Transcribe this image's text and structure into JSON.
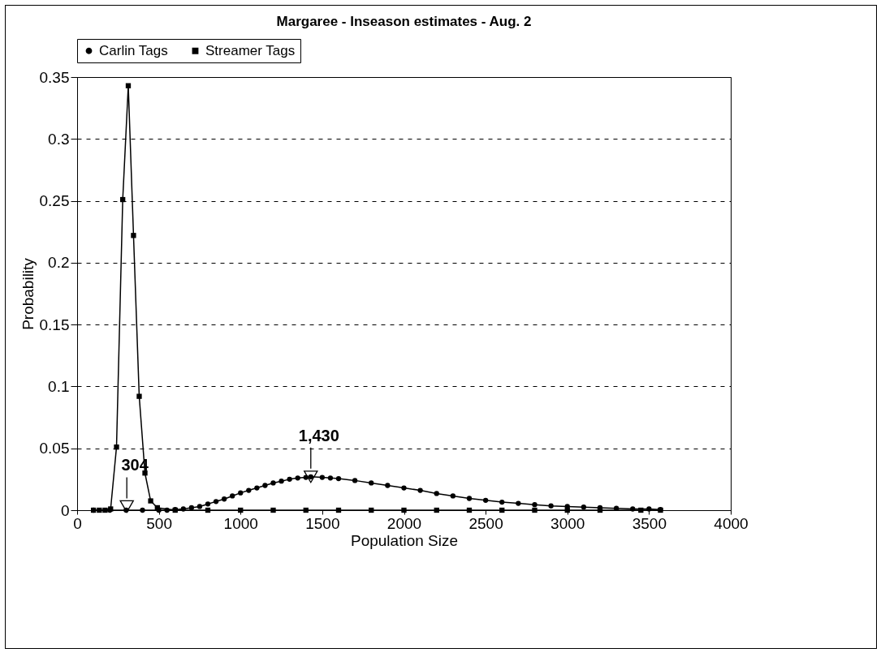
{
  "chart_data": {
    "type": "line",
    "title": "Margaree - Inseason estimates - Aug. 2",
    "xlabel": "Population Size",
    "ylabel": "Probability",
    "xlim": [
      0,
      4000
    ],
    "xticks": [
      0,
      500,
      1000,
      1500,
      2000,
      2500,
      3000,
      3500,
      4000
    ],
    "ylim": [
      0,
      0.35
    ],
    "yticks": [
      0,
      0.05,
      0.1,
      0.15,
      0.2,
      0.25,
      0.3,
      0.35
    ],
    "grid": "y",
    "legend": "top",
    "line_style": "solid",
    "series": [
      {
        "name": "Carlin Tags",
        "color": "#000000",
        "marker": "circle",
        "x": [
          100,
          200,
          300,
          400,
          500,
          550,
          600,
          650,
          700,
          750,
          800,
          850,
          900,
          950,
          1000,
          1050,
          1100,
          1150,
          1200,
          1250,
          1300,
          1350,
          1400,
          1430,
          1500,
          1550,
          1600,
          1700,
          1800,
          1900,
          2000,
          2100,
          2200,
          2300,
          2400,
          2500,
          2600,
          2700,
          2800,
          2900,
          3000,
          3100,
          3200,
          3300,
          3400,
          3500,
          3570
        ],
        "values": [
          0,
          0,
          0,
          0,
          0,
          0,
          0.0005,
          0.001,
          0.002,
          0.003,
          0.005,
          0.007,
          0.009,
          0.0115,
          0.014,
          0.016,
          0.018,
          0.02,
          0.022,
          0.0235,
          0.025,
          0.026,
          0.0265,
          0.027,
          0.0265,
          0.026,
          0.0255,
          0.024,
          0.022,
          0.02,
          0.018,
          0.016,
          0.0135,
          0.0115,
          0.0095,
          0.008,
          0.0065,
          0.0055,
          0.0045,
          0.0035,
          0.003,
          0.0025,
          0.002,
          0.0015,
          0.001,
          0.001,
          0.0005
        ]
      },
      {
        "name": "Streamer Tags",
        "color": "#000000",
        "marker": "square",
        "x": [
          100,
          136,
          171,
          205,
          241,
          279,
          313,
          345,
          380,
          415,
          450,
          491,
          600,
          800,
          1000,
          1200,
          1400,
          1600,
          1800,
          2000,
          2200,
          2400,
          2600,
          2800,
          3000,
          3200,
          3450,
          3570
        ],
        "values": [
          0,
          0,
          0,
          0.001,
          0.051,
          0.251,
          0.343,
          0.222,
          0.092,
          0.03,
          0.0075,
          0.002,
          0,
          0,
          0,
          0,
          0,
          0,
          0,
          0,
          0,
          0,
          0,
          0,
          0,
          0,
          0,
          0
        ]
      }
    ],
    "annotations": [
      {
        "text": "304",
        "x": 304,
        "y": 0.003
      },
      {
        "text": "1,430",
        "x": 1430,
        "y": 0.027
      }
    ]
  }
}
